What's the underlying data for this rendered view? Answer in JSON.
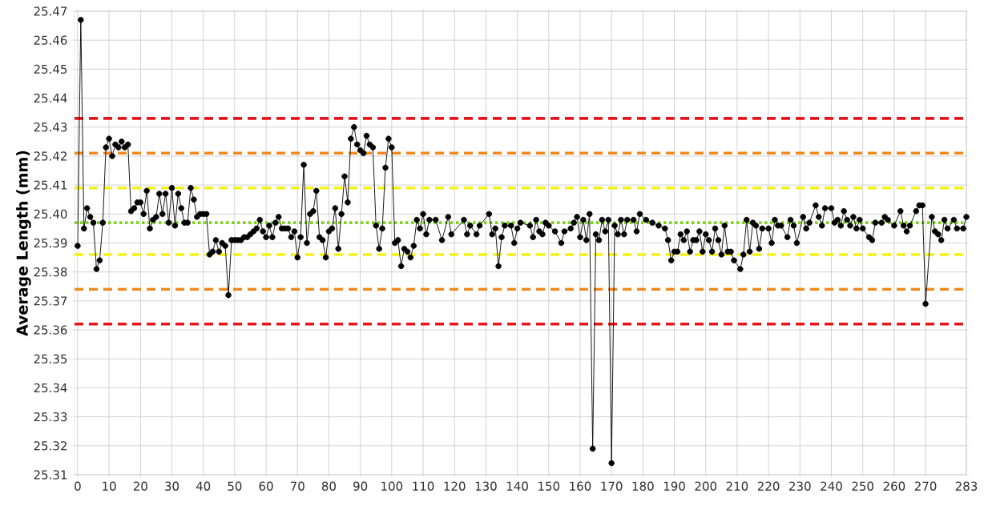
{
  "chart_data": {
    "type": "line",
    "ylabel": "Average Length (mm)",
    "xlim": [
      -1,
      283
    ],
    "ylim": [
      25.31,
      25.47
    ],
    "xticks": [
      0,
      10,
      20,
      30,
      40,
      50,
      60,
      70,
      80,
      90,
      100,
      110,
      120,
      130,
      140,
      150,
      160,
      170,
      180,
      190,
      200,
      210,
      220,
      230,
      240,
      250,
      260,
      270,
      283
    ],
    "yticks": [
      25.31,
      25.32,
      25.33,
      25.34,
      25.35,
      25.36,
      25.37,
      25.38,
      25.39,
      {
        "value": 25.4,
        "label": "25.40"
      },
      25.41,
      25.42,
      25.43,
      25.44,
      25.45,
      25.46,
      25.47
    ],
    "grid": true,
    "marker": "circle",
    "line_style": "solid",
    "ref_lines": [
      {
        "axis": "y",
        "value": 25.433,
        "color": "#e8141c",
        "line_style": "dashed"
      },
      {
        "axis": "y",
        "value": 25.421,
        "color": "#f08a1c",
        "line_style": "dashed"
      },
      {
        "axis": "y",
        "value": 25.409,
        "color": "#f2f218",
        "line_style": "dashed"
      },
      {
        "axis": "y",
        "value": 25.397,
        "color": "#7ed321",
        "line_style": "dotted"
      },
      {
        "axis": "y",
        "value": 25.386,
        "color": "#f2f218",
        "line_style": "dashed"
      },
      {
        "axis": "y",
        "value": 25.374,
        "color": "#f08a1c",
        "line_style": "dashed"
      },
      {
        "axis": "y",
        "value": 25.362,
        "color": "#e8141c",
        "line_style": "dashed"
      }
    ],
    "series": [
      {
        "color": "#000000",
        "x": [
          0,
          1,
          2,
          3,
          4,
          5,
          6,
          7,
          8,
          9,
          10,
          11,
          12,
          13,
          14,
          15,
          16,
          17,
          18,
          19,
          20,
          21,
          22,
          23,
          24,
          25,
          26,
          27,
          28,
          29,
          30,
          31,
          32,
          33,
          34,
          35,
          36,
          37,
          38,
          39,
          40,
          41,
          42,
          43,
          44,
          45,
          46,
          47,
          48,
          49,
          50,
          51,
          52,
          53,
          54,
          55,
          56,
          57,
          58,
          59,
          60,
          61,
          62,
          63,
          64,
          65,
          66,
          67,
          68,
          69,
          70,
          71,
          72,
          73,
          74,
          75,
          76,
          77,
          78,
          79,
          80,
          81,
          82,
          83,
          84,
          85,
          86,
          87,
          88,
          89,
          90,
          91,
          92,
          93,
          94,
          95,
          96,
          97,
          98,
          99,
          100,
          101,
          102,
          103,
          104,
          105,
          106,
          107,
          108,
          109,
          110,
          111,
          112,
          114,
          116,
          118,
          119,
          123,
          124,
          125,
          127,
          128,
          131,
          132,
          133,
          134,
          135,
          136,
          138,
          139,
          140,
          141,
          144,
          145,
          146,
          147,
          148,
          149,
          150,
          152,
          154,
          155,
          157,
          158,
          159,
          160,
          161,
          162,
          163,
          164,
          165,
          166,
          167,
          168,
          169,
          170,
          171,
          172,
          173,
          174,
          175,
          177,
          178,
          179,
          181,
          183,
          185,
          187,
          188,
          189,
          190,
          191,
          192,
          193,
          194,
          195,
          196,
          197,
          198,
          199,
          200,
          201,
          202,
          203,
          204,
          205,
          206,
          207,
          208,
          209,
          211,
          212,
          213,
          214,
          215,
          216,
          217,
          218,
          220,
          221,
          222,
          223,
          224,
          226,
          227,
          228,
          229,
          231,
          232,
          233,
          235,
          236,
          237,
          238,
          240,
          241,
          242,
          243,
          244,
          245,
          246,
          247,
          248,
          249,
          250,
          252,
          253,
          254,
          256,
          257,
          258,
          260,
          262,
          263,
          264,
          265,
          267,
          268,
          269,
          270,
          272,
          273,
          274,
          275,
          276,
          277,
          279,
          280,
          282,
          283
        ],
        "values": [
          25.389,
          25.467,
          25.395,
          25.402,
          25.399,
          25.397,
          25.381,
          25.384,
          25.397,
          25.423,
          25.426,
          25.42,
          25.424,
          25.423,
          25.425,
          25.423,
          25.424,
          25.401,
          25.402,
          25.404,
          25.404,
          25.4,
          25.408,
          25.395,
          25.398,
          25.399,
          25.407,
          25.4,
          25.407,
          25.397,
          25.409,
          25.396,
          25.407,
          25.402,
          25.397,
          25.397,
          25.409,
          25.405,
          25.399,
          25.4,
          25.4,
          25.4,
          25.386,
          25.387,
          25.391,
          25.387,
          25.39,
          25.389,
          25.372,
          25.391,
          25.391,
          25.391,
          25.391,
          25.392,
          25.392,
          25.393,
          25.394,
          25.395,
          25.398,
          25.394,
          25.392,
          25.396,
          25.392,
          25.397,
          25.399,
          25.395,
          25.395,
          25.395,
          25.392,
          25.394,
          25.385,
          25.392,
          25.417,
          25.39,
          25.4,
          25.401,
          25.408,
          25.392,
          25.391,
          25.385,
          25.394,
          25.395,
          25.402,
          25.388,
          25.4,
          25.413,
          25.404,
          25.426,
          25.43,
          25.424,
          25.422,
          25.421,
          25.427,
          25.424,
          25.423,
          25.396,
          25.388,
          25.395,
          25.416,
          25.426,
          25.423,
          25.39,
          25.391,
          25.382,
          25.388,
          25.387,
          25.385,
          25.389,
          25.398,
          25.395,
          25.4,
          25.393,
          25.398,
          25.398,
          25.391,
          25.399,
          25.393,
          25.398,
          25.393,
          25.396,
          25.393,
          25.396,
          25.4,
          25.393,
          25.395,
          25.382,
          25.392,
          25.396,
          25.396,
          25.39,
          25.395,
          25.397,
          25.396,
          25.392,
          25.398,
          25.394,
          25.393,
          25.397,
          25.396,
          25.394,
          25.39,
          25.394,
          25.395,
          25.397,
          25.399,
          25.392,
          25.398,
          25.391,
          25.4,
          25.319,
          25.393,
          25.391,
          25.398,
          25.394,
          25.398,
          25.314,
          25.396,
          25.393,
          25.398,
          25.393,
          25.398,
          25.398,
          25.394,
          25.4,
          25.398,
          25.397,
          25.396,
          25.395,
          25.391,
          25.384,
          25.387,
          25.387,
          25.393,
          25.391,
          25.394,
          25.387,
          25.391,
          25.391,
          25.394,
          25.387,
          25.393,
          25.391,
          25.387,
          25.395,
          25.391,
          25.386,
          25.396,
          25.387,
          25.387,
          25.384,
          25.381,
          25.386,
          25.398,
          25.387,
          25.397,
          25.396,
          25.388,
          25.395,
          25.395,
          25.39,
          25.398,
          25.396,
          25.396,
          25.392,
          25.398,
          25.396,
          25.39,
          25.399,
          25.395,
          25.397,
          25.403,
          25.399,
          25.396,
          25.402,
          25.402,
          25.397,
          25.398,
          25.396,
          25.401,
          25.398,
          25.396,
          25.399,
          25.395,
          25.398,
          25.395,
          25.392,
          25.391,
          25.397,
          25.397,
          25.399,
          25.398,
          25.396,
          25.401,
          25.396,
          25.394,
          25.396,
          25.401,
          25.403,
          25.403,
          25.369,
          25.399,
          25.394,
          25.393,
          25.391,
          25.398,
          25.395,
          25.398,
          25.395,
          25.395,
          25.399
        ]
      }
    ]
  }
}
